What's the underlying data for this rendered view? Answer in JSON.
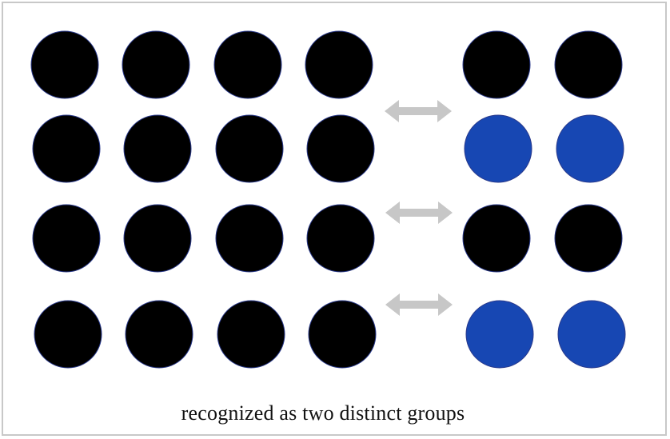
{
  "caption": "recognized as two distinct groups",
  "colors": {
    "frame_border": "#c8c8c8",
    "dot_black": "#000000",
    "dot_blue": "#1747b3",
    "dot_outline": "#2a3a8c",
    "arrow": "#c7c7c7"
  },
  "left_group": {
    "rows": 4,
    "cols": 4,
    "dot_colors": [
      [
        "black",
        "black",
        "black",
        "black"
      ],
      [
        "black",
        "black",
        "black",
        "black"
      ],
      [
        "black",
        "black",
        "black",
        "black"
      ],
      [
        "black",
        "black",
        "black",
        "black"
      ]
    ]
  },
  "right_group": {
    "rows": 4,
    "cols": 2,
    "dot_colors": [
      [
        "black",
        "black"
      ],
      [
        "blue",
        "blue"
      ],
      [
        "black",
        "black"
      ],
      [
        "blue",
        "blue"
      ]
    ]
  },
  "arrows": [
    {
      "icon": "double-arrow-icon",
      "row_between": "1-2"
    },
    {
      "icon": "double-arrow-icon",
      "row_between": "3"
    },
    {
      "icon": "double-arrow-icon",
      "row_between": "4"
    }
  ]
}
